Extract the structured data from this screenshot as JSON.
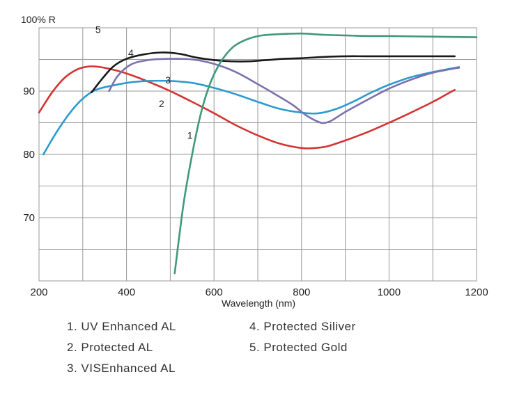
{
  "chart_data": {
    "type": "line",
    "title": "",
    "xlabel": "Wavelength (nm)",
    "ylabel": "100% R",
    "xlim": [
      200,
      1200
    ],
    "ylim": [
      60,
      100
    ],
    "xticks": [
      200,
      400,
      600,
      800,
      1000,
      1200
    ],
    "xtick_labels": [
      "200",
      "400",
      "600",
      "800",
      "1000",
      "1200"
    ],
    "yticks": [
      70,
      80,
      90
    ],
    "ytick_labels": [
      "70",
      "80",
      "90"
    ],
    "grid": true,
    "series": [
      {
        "name": "UV Enhanced AL",
        "label": "1",
        "color": "#d43333",
        "x": [
          200,
          230,
          260,
          290,
          315,
          340,
          380,
          420,
          460,
          500,
          550,
          600,
          650,
          700,
          750,
          800,
          830,
          860,
          900,
          950,
          1000,
          1050,
          1100,
          1150
        ],
        "y": [
          86.6,
          89.8,
          92.2,
          93.5,
          93.9,
          93.8,
          93.2,
          92.3,
          91.2,
          90.0,
          88.3,
          86.5,
          84.6,
          83.0,
          81.7,
          81.0,
          81.0,
          81.3,
          82.2,
          83.5,
          85.0,
          86.6,
          88.3,
          90.2
        ]
      },
      {
        "name": "Protected AL",
        "label": "2",
        "color": "#2b9bcf",
        "x": [
          210,
          240,
          270,
          300,
          330,
          370,
          410,
          450,
          500,
          550,
          600,
          650,
          700,
          750,
          800,
          840,
          880,
          920,
          960,
          1000,
          1050,
          1100,
          1160
        ],
        "y": [
          80.0,
          83.5,
          86.5,
          88.8,
          90.2,
          90.9,
          91.4,
          91.6,
          91.6,
          91.3,
          90.5,
          89.5,
          88.3,
          87.2,
          86.6,
          86.5,
          87.2,
          88.4,
          89.8,
          91.0,
          92.2,
          93.0,
          93.8
        ]
      },
      {
        "name": "VIS Enhanced AL",
        "label": "3",
        "color": "#7b72ad",
        "x": [
          360,
          380,
          410,
          450,
          500,
          550,
          600,
          650,
          700,
          740,
          780,
          810,
          840,
          855,
          870,
          900,
          950,
          1000,
          1050,
          1100,
          1160
        ],
        "y": [
          90.0,
          92.4,
          94.2,
          94.9,
          95.1,
          95.0,
          94.3,
          93.0,
          91.1,
          89.5,
          87.8,
          86.2,
          85.1,
          85.0,
          85.4,
          86.7,
          88.6,
          90.4,
          91.8,
          92.9,
          93.7
        ]
      },
      {
        "name": "Protected Siliver",
        "label": "4",
        "color": "#1a1a1a",
        "x": [
          320,
          345,
          370,
          400,
          440,
          480,
          520,
          560,
          600,
          640,
          680,
          720,
          760,
          800,
          850,
          900,
          950,
          1000,
          1050,
          1100,
          1150
        ],
        "y": [
          89.8,
          92.0,
          93.9,
          95.1,
          95.8,
          96.1,
          95.9,
          95.3,
          94.9,
          94.7,
          94.7,
          94.9,
          95.1,
          95.2,
          95.4,
          95.5,
          95.5,
          95.5,
          95.5,
          95.5,
          95.5
        ]
      },
      {
        "name": "Protected Gold",
        "label": "5",
        "color": "#3e9a7a",
        "x": [
          510,
          530,
          550,
          570,
          590,
          610,
          630,
          650,
          680,
          710,
          750,
          800,
          850,
          900,
          950,
          1000,
          1100,
          1200
        ],
        "y": [
          61.2,
          72.0,
          80.0,
          86.5,
          91.0,
          94.0,
          96.0,
          97.3,
          98.3,
          98.8,
          99.0,
          99.1,
          98.9,
          98.8,
          98.7,
          98.7,
          98.6,
          98.5
        ]
      }
    ],
    "curve_labels": [
      {
        "text": "1",
        "x": 545,
        "y": 82.5
      },
      {
        "text": "2",
        "x": 480,
        "y": 87.5
      },
      {
        "text": "3",
        "x": 495,
        "y": 91.2
      },
      {
        "text": "4",
        "x": 410,
        "y": 95.5
      },
      {
        "text": "5",
        "x": 335,
        "y": 99.2
      }
    ]
  },
  "legend": {
    "col1": [
      "1. UV Enhanced AL",
      "2. Protected  AL",
      "3. VISEnhanced AL"
    ],
    "col2": [
      "4. Protected  Siliver",
      "5. Protected  Gold"
    ]
  }
}
